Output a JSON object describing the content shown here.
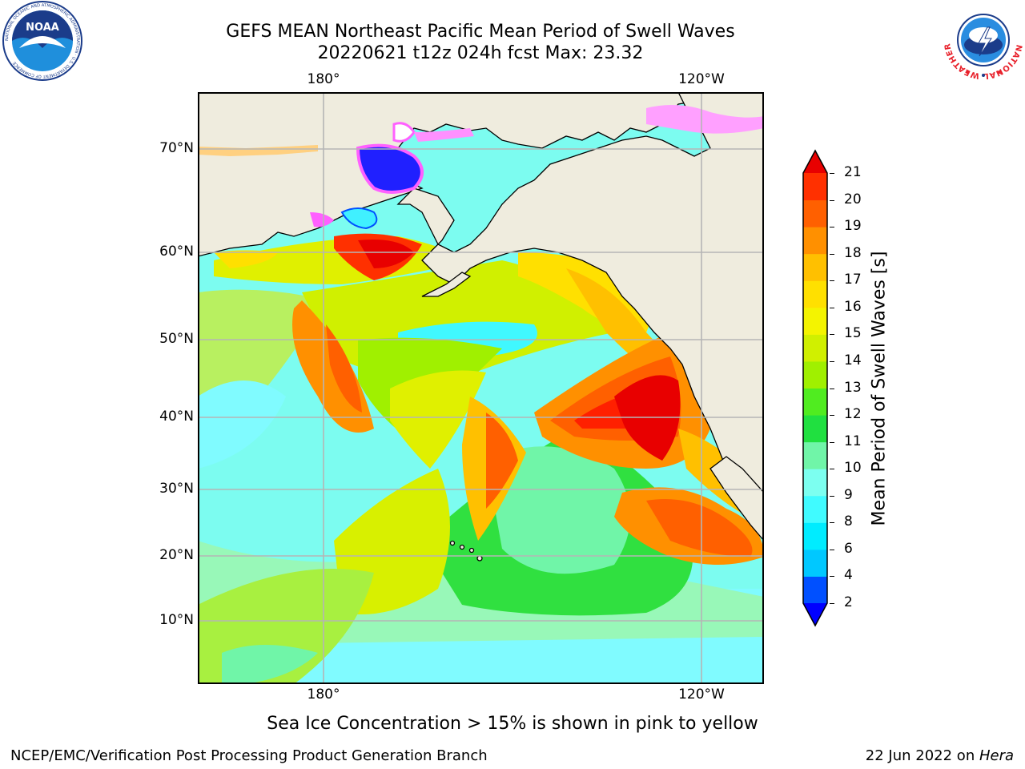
{
  "title": {
    "line1": "GEFS MEAN Northeast Pacific Mean Period of Swell Waves",
    "line2": "20220621 t12z 024h fcst   Max: 23.32"
  },
  "map": {
    "lat_labels": [
      "70°N",
      "60°N",
      "50°N",
      "40°N",
      "30°N",
      "20°N",
      "10°N"
    ],
    "lon_labels": [
      "180°",
      "120°W"
    ],
    "land_color": "#efecde",
    "ocean_default_color": "#7cfcf0"
  },
  "colorbar": {
    "label": "Mean Period of Swell Waves [s]",
    "ticks": [
      "2",
      "4",
      "6",
      "8",
      "9",
      "10",
      "11",
      "12",
      "13",
      "14",
      "15",
      "16",
      "17",
      "18",
      "19",
      "20",
      "21"
    ],
    "colors": [
      "#0050ff",
      "#00c8ff",
      "#00ecff",
      "#40fbff",
      "#7cfff0",
      "#70f5a8",
      "#20e040",
      "#50ec20",
      "#a0f000",
      "#d0f000",
      "#f4f400",
      "#ffe000",
      "#ffc000",
      "#ff9000",
      "#ff6000",
      "#ff3000",
      "#e80000"
    ],
    "under_color": "#0000ff",
    "over_color": "#e80000"
  },
  "caption": "Sea Ice Concentration > 15% is shown in pink to yellow",
  "footer": {
    "credit": "NCEP/EMC/Verification Post Processing Product Generation Branch",
    "date_prefix": "22 Jun 2022 on ",
    "date_host": "Hera"
  },
  "logos": {
    "noaa": "NOAA",
    "noaa_ring": "NATIONAL OCEANIC AND ATMOSPHERIC ADMINISTRATION · U.S. DEPARTMENT OF COMMERCE",
    "nws_ring": "NATIONAL WEATHER SERVICE"
  }
}
